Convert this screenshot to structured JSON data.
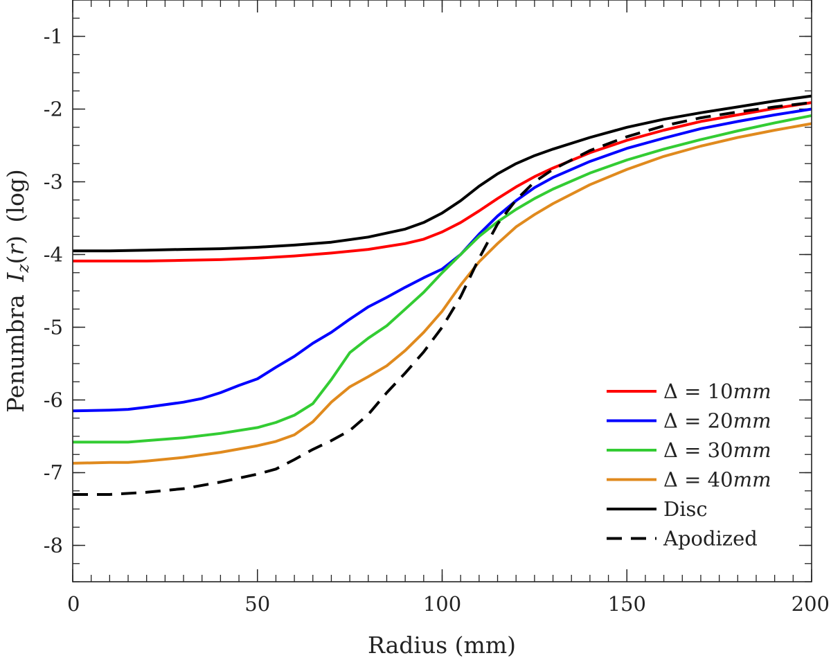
{
  "chart_data": {
    "type": "line",
    "xlabel": "Radius (mm)",
    "ylabel": {
      "prefix": "Penumbra",
      "symbol": "I",
      "subscript": "z",
      "arg_open": "(",
      "arg": "r",
      "arg_close": ")",
      "suffix": "(log)"
    },
    "xlim": [
      0,
      200
    ],
    "ylim": [
      -8.5,
      -0.5
    ],
    "xticks": [
      {
        "value": 0,
        "label": "0"
      },
      {
        "value": 50,
        "label": "50"
      },
      {
        "value": 100,
        "label": "100"
      },
      {
        "value": 150,
        "label": "150"
      },
      {
        "value": 200,
        "label": "200"
      }
    ],
    "yticks": [
      {
        "value": -1,
        "label": "-1"
      },
      {
        "value": -2,
        "label": "-2"
      },
      {
        "value": -3,
        "label": "-3"
      },
      {
        "value": -4,
        "label": "-4"
      },
      {
        "value": -5,
        "label": "-5"
      },
      {
        "value": -6,
        "label": "-6"
      },
      {
        "value": -7,
        "label": "-7"
      },
      {
        "value": -8,
        "label": "-8"
      }
    ],
    "x_minor_step": 5,
    "y_minor_step": 0.25,
    "legend_position": "bottom-right",
    "series": [
      {
        "name": "Δ = 10mm",
        "legend_prefix": "Δ = 10",
        "legend_unit": "mm",
        "color": "#ff0000",
        "dash": "solid",
        "x": [
          0,
          10,
          20,
          30,
          40,
          50,
          60,
          70,
          80,
          90,
          95,
          100,
          105,
          110,
          115,
          120,
          125,
          130,
          140,
          150,
          160,
          170,
          180,
          190,
          200
        ],
        "y": [
          -4.09,
          -4.09,
          -4.09,
          -4.08,
          -4.07,
          -4.05,
          -4.02,
          -3.98,
          -3.93,
          -3.85,
          -3.79,
          -3.69,
          -3.56,
          -3.4,
          -3.23,
          -3.07,
          -2.93,
          -2.81,
          -2.6,
          -2.43,
          -2.29,
          -2.17,
          -2.08,
          -1.99,
          -1.91
        ]
      },
      {
        "name": "Δ = 20mm",
        "legend_prefix": "Δ = 20",
        "legend_unit": "mm",
        "color": "#0000ff",
        "dash": "solid",
        "x": [
          0,
          10,
          15,
          20,
          30,
          35,
          40,
          45,
          50,
          55,
          60,
          65,
          70,
          75,
          80,
          85,
          90,
          95,
          100,
          105,
          110,
          115,
          120,
          125,
          130,
          140,
          150,
          160,
          170,
          180,
          190,
          200
        ],
        "y": [
          -6.15,
          -6.14,
          -6.13,
          -6.1,
          -6.03,
          -5.98,
          -5.9,
          -5.8,
          -5.71,
          -5.55,
          -5.4,
          -5.22,
          -5.07,
          -4.89,
          -4.72,
          -4.59,
          -4.45,
          -4.32,
          -4.2,
          -4.0,
          -3.72,
          -3.47,
          -3.26,
          -3.08,
          -2.94,
          -2.72,
          -2.54,
          -2.4,
          -2.27,
          -2.17,
          -2.08,
          -2.0
        ]
      },
      {
        "name": "Δ = 30mm",
        "legend_prefix": "Δ = 30",
        "legend_unit": "mm",
        "color": "#33cc33",
        "dash": "solid",
        "x": [
          0,
          10,
          15,
          20,
          30,
          40,
          50,
          55,
          60,
          65,
          70,
          75,
          80,
          85,
          90,
          95,
          100,
          105,
          110,
          115,
          120,
          125,
          130,
          140,
          150,
          160,
          170,
          180,
          190,
          200
        ],
        "y": [
          -6.58,
          -6.58,
          -6.58,
          -6.56,
          -6.52,
          -6.46,
          -6.38,
          -6.31,
          -6.21,
          -6.05,
          -5.72,
          -5.35,
          -5.15,
          -4.98,
          -4.75,
          -4.52,
          -4.25,
          -4.0,
          -3.75,
          -3.55,
          -3.38,
          -3.23,
          -3.1,
          -2.88,
          -2.7,
          -2.55,
          -2.42,
          -2.3,
          -2.19,
          -2.09
        ]
      },
      {
        "name": "Δ = 40mm",
        "legend_prefix": "Δ = 40",
        "legend_unit": "mm",
        "color": "#e08a1e",
        "dash": "solid",
        "x": [
          0,
          10,
          15,
          20,
          30,
          40,
          50,
          55,
          60,
          65,
          70,
          75,
          80,
          85,
          90,
          95,
          100,
          105,
          110,
          115,
          120,
          125,
          130,
          140,
          150,
          160,
          170,
          180,
          190,
          200
        ],
        "y": [
          -6.87,
          -6.86,
          -6.86,
          -6.84,
          -6.79,
          -6.72,
          -6.63,
          -6.57,
          -6.48,
          -6.3,
          -6.03,
          -5.82,
          -5.68,
          -5.53,
          -5.32,
          -5.07,
          -4.78,
          -4.42,
          -4.1,
          -3.85,
          -3.62,
          -3.45,
          -3.3,
          -3.04,
          -2.83,
          -2.65,
          -2.51,
          -2.39,
          -2.29,
          -2.2
        ]
      },
      {
        "name": "Disc",
        "legend_prefix": "Disc",
        "legend_unit": "",
        "color": "#000000",
        "dash": "solid",
        "x": [
          0,
          10,
          20,
          30,
          40,
          50,
          60,
          70,
          80,
          90,
          95,
          100,
          105,
          110,
          115,
          120,
          125,
          130,
          140,
          150,
          160,
          170,
          180,
          190,
          200
        ],
        "y": [
          -3.95,
          -3.95,
          -3.94,
          -3.93,
          -3.92,
          -3.9,
          -3.87,
          -3.83,
          -3.76,
          -3.65,
          -3.56,
          -3.43,
          -3.26,
          -3.06,
          -2.89,
          -2.75,
          -2.64,
          -2.55,
          -2.39,
          -2.25,
          -2.14,
          -2.05,
          -1.97,
          -1.89,
          -1.82
        ]
      },
      {
        "name": "Apodized",
        "legend_prefix": "Apodized",
        "legend_unit": "",
        "color": "#000000",
        "dash": "dashed",
        "x": [
          0,
          10,
          20,
          30,
          40,
          50,
          55,
          60,
          65,
          70,
          75,
          80,
          85,
          90,
          95,
          100,
          105,
          110,
          115,
          120,
          125,
          130,
          140,
          150,
          160,
          170,
          180,
          190,
          200
        ],
        "y": [
          -7.3,
          -7.3,
          -7.27,
          -7.22,
          -7.13,
          -7.02,
          -6.95,
          -6.82,
          -6.68,
          -6.56,
          -6.42,
          -6.2,
          -5.9,
          -5.63,
          -5.34,
          -5.0,
          -4.58,
          -4.05,
          -3.58,
          -3.25,
          -3.0,
          -2.83,
          -2.57,
          -2.38,
          -2.23,
          -2.12,
          -2.04,
          -1.97,
          -1.91
        ]
      }
    ]
  }
}
